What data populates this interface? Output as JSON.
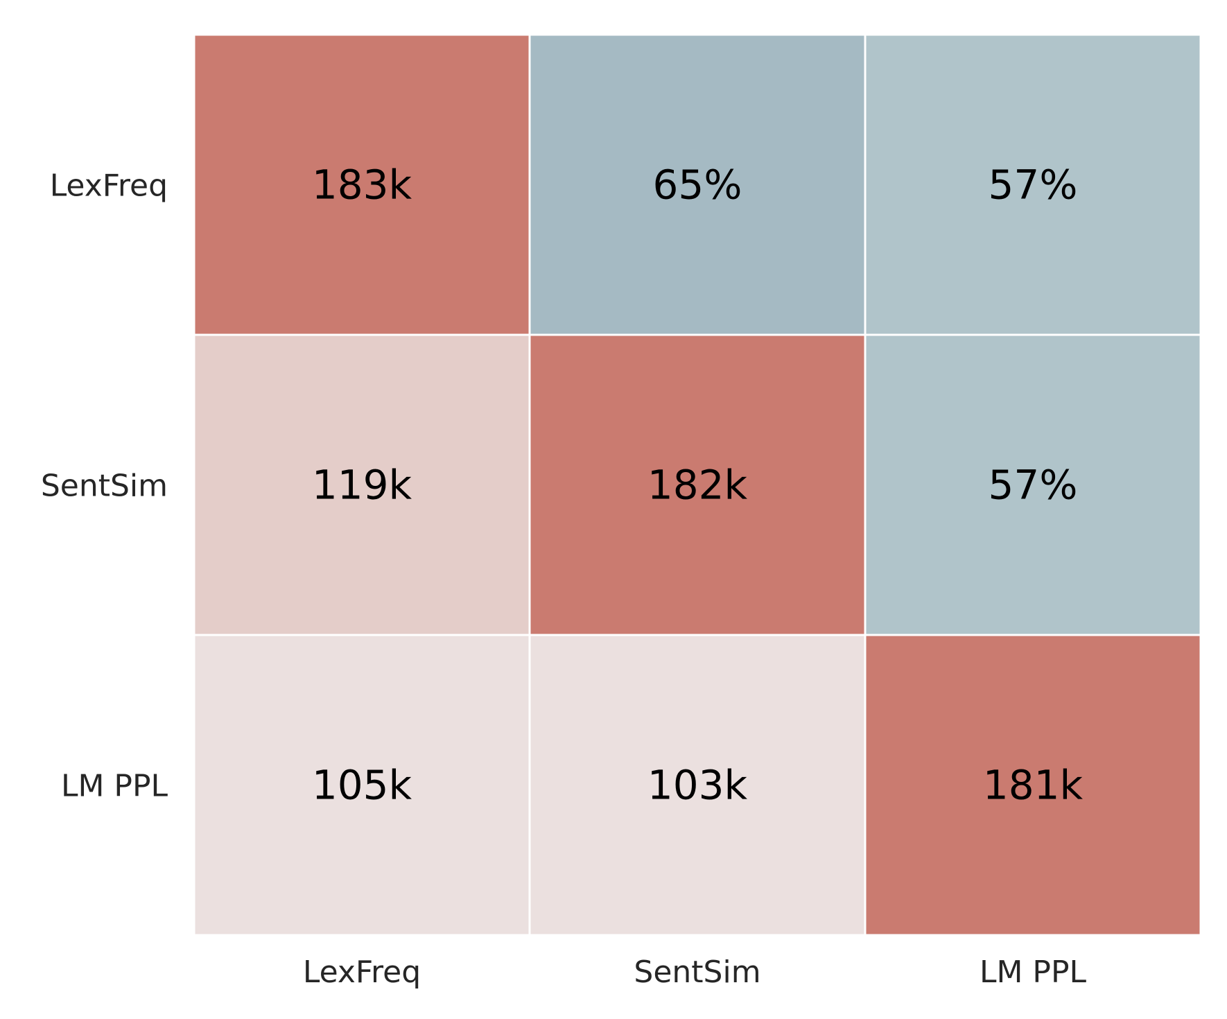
{
  "chart_data": {
    "type": "heatmap",
    "title": "",
    "xlabel": "",
    "ylabel": "",
    "x_categories": [
      "LexFreq",
      "SentSim",
      "LM PPL"
    ],
    "y_categories": [
      "LexFreq",
      "SentSim",
      "LM PPL"
    ],
    "cells": [
      [
        {
          "label": "183k"
        },
        {
          "label": "65%"
        },
        {
          "label": "57%"
        }
      ],
      [
        {
          "label": "119k"
        },
        {
          "label": "182k"
        },
        {
          "label": "57%"
        }
      ],
      [
        {
          "label": "105k"
        },
        {
          "label": "103k"
        },
        {
          "label": "181k"
        }
      ]
    ],
    "colors": [
      [
        "#ca7b70",
        "#a5bac3",
        "#b0c4ca"
      ],
      [
        "#e4cdc9",
        "#ca7b70",
        "#b0c4ca"
      ],
      [
        "#ebe0df",
        "#ebe0df",
        "#ca7b70"
      ]
    ],
    "grid_line_color": "#ffffff",
    "legend": "none"
  }
}
